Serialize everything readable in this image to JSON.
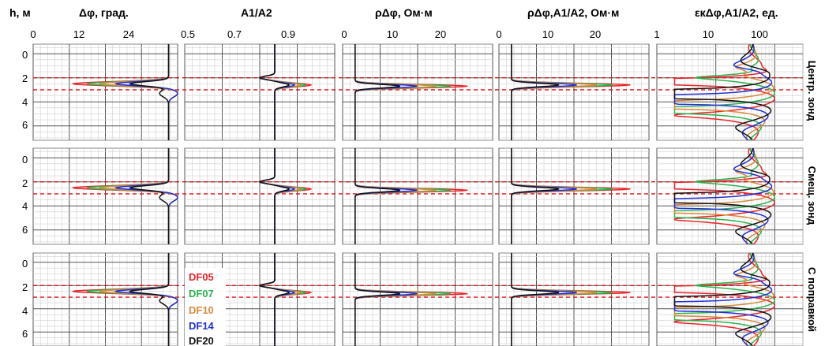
{
  "chart_data": {
    "type": "line",
    "depth_label": "h, м",
    "depth_ticks": [
      "0",
      "2",
      "4",
      "6"
    ],
    "row_titles": [
      "Центр. зонд",
      "Смещ. зонд",
      "С поправкой"
    ],
    "panels": [
      {
        "title": "Δφ, град.",
        "ticks": [
          "0",
          "12",
          "24"
        ],
        "xlim": [
          0,
          24
        ],
        "log": false
      },
      {
        "title": "A1/A2",
        "ticks": [
          "0.5",
          "0.7",
          "0.9"
        ],
        "xlim": [
          0.5,
          1.0
        ],
        "log": false
      },
      {
        "title": "ρΔφ, Ом·м",
        "ticks": [
          "0",
          "10",
          "20"
        ],
        "xlim": [
          0,
          24
        ],
        "log": false
      },
      {
        "title": "ρΔφ,A1/A2, Ом·м",
        "ticks": [
          "0",
          "10",
          "20"
        ],
        "xlim": [
          0,
          24
        ],
        "log": false
      },
      {
        "title": "εкΔφ,A1/A2, ед.",
        "ticks": [
          "1",
          "10",
          "100"
        ],
        "xlim": [
          1,
          300
        ],
        "log": true
      }
    ],
    "ylim": [
      -0.8,
      7.2
    ],
    "reference_depths": [
      2.0,
      3.0
    ],
    "series": [
      {
        "name": "DF05",
        "color": "#e8262b"
      },
      {
        "name": "DF07",
        "color": "#2bb34a"
      },
      {
        "name": "DF10",
        "color": "#d8893a"
      },
      {
        "name": "DF14",
        "color": "#1f2fd6"
      },
      {
        "name": "DF20",
        "color": "#111111"
      }
    ]
  }
}
